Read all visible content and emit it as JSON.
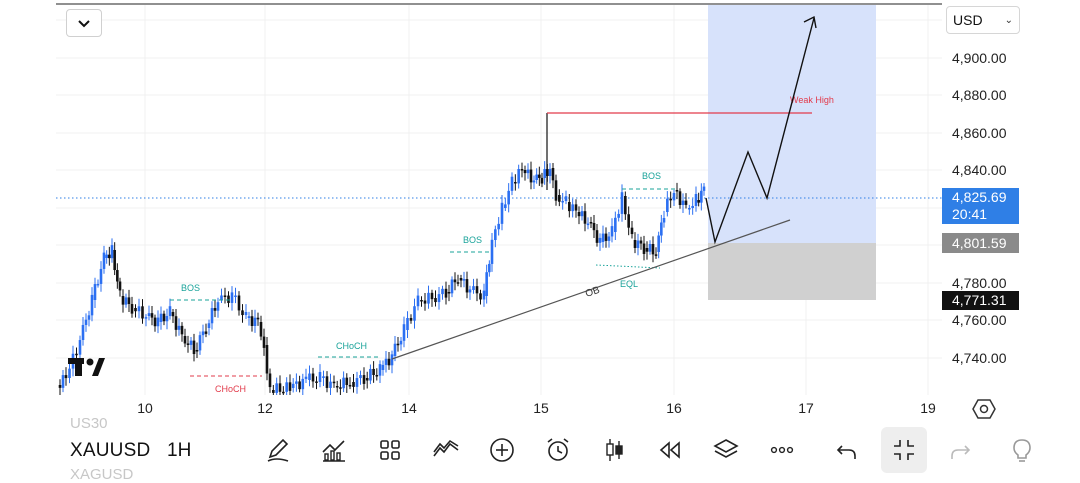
{
  "chart": {
    "currency": "USD",
    "price_axis": [
      "4,900.00",
      "4,880.00",
      "4,860.00",
      "4,840.00",
      "4,780.00",
      "4,760.00",
      "4,740.00"
    ],
    "time_axis": [
      "10",
      "12",
      "14",
      "15",
      "16",
      "17",
      "19"
    ],
    "current_price": "4,825.69",
    "countdown": "20:41",
    "target_price": "4,801.59",
    "stop_price": "4,771.31",
    "annotations": {
      "bos1": "BOS",
      "bos2": "BOS",
      "bos3": "BOS",
      "choch1": "CHoCH",
      "choch2": "CHoCH",
      "ob": "OB",
      "eql": "EQL",
      "weak_high": "Weak High"
    },
    "colors": {
      "bull": "#2b6ff2",
      "bear": "#111111",
      "structure": "#1aa39a",
      "weak_high": "#e23b4b",
      "long_zone": "#d7e2fb",
      "stop_zone": "#d0d0d0"
    }
  },
  "toolbar": {
    "symbol": "XAUUSD",
    "interval": "1H",
    "ghost_above": "US30",
    "ghost_below": "XAGUSD",
    "tools": [
      "pencil-icon",
      "indicators-icon",
      "layouts-icon",
      "pattern-icon",
      "add-icon",
      "alarm-icon",
      "candles-icon",
      "replay-icon",
      "layers-icon",
      "more-icon",
      "undo-icon",
      "minimize-icon",
      "redo-icon",
      "lightbulb-icon"
    ]
  }
}
